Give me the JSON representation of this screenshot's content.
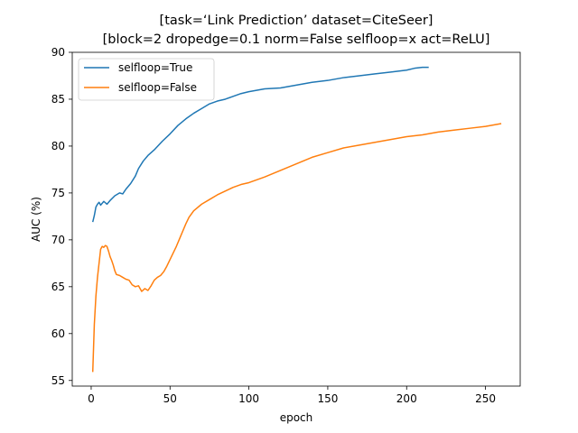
{
  "chart_data": {
    "type": "line",
    "title_line1": "[task=‘Link Prediction’ dataset=CiteSeer]",
    "title_line2": "[block=2 dropedge=0.1 norm=False selfloop=x act=ReLU]",
    "xlabel": "epoch",
    "ylabel": "AUC (%)",
    "xlim": [
      -12,
      272
    ],
    "ylim": [
      54.4,
      90
    ],
    "xticks": [
      0,
      50,
      100,
      150,
      200,
      250
    ],
    "yticks": [
      55,
      60,
      65,
      70,
      75,
      80,
      85,
      90
    ],
    "grid": false,
    "legend_placement": "top-left",
    "series": [
      {
        "name": "selfloop=True",
        "color": "#1f77b4",
        "x": [
          1,
          2,
          3,
          4,
          5,
          6,
          8,
          10,
          12,
          15,
          18,
          20,
          22,
          25,
          28,
          30,
          33,
          36,
          40,
          45,
          50,
          55,
          60,
          65,
          70,
          75,
          80,
          85,
          90,
          95,
          100,
          110,
          120,
          130,
          140,
          150,
          160,
          170,
          180,
          190,
          200,
          205,
          210,
          214
        ],
        "values": [
          71.9,
          72.6,
          73.5,
          73.8,
          74.0,
          73.7,
          74.1,
          73.8,
          74.2,
          74.7,
          75.0,
          74.9,
          75.4,
          76.0,
          76.8,
          77.6,
          78.4,
          79.0,
          79.6,
          80.5,
          81.3,
          82.2,
          82.9,
          83.5,
          84.0,
          84.5,
          84.8,
          85.0,
          85.3,
          85.6,
          85.8,
          86.1,
          86.2,
          86.5,
          86.8,
          87.0,
          87.3,
          87.5,
          87.7,
          87.9,
          88.1,
          88.3,
          88.4,
          88.4
        ]
      },
      {
        "name": "selfloop=False",
        "color": "#ff7f0e",
        "x": [
          1,
          2,
          3,
          4,
          5,
          6,
          7,
          8,
          9,
          10,
          11,
          12,
          13,
          14,
          15,
          16,
          18,
          20,
          22,
          24,
          26,
          28,
          30,
          32,
          34,
          36,
          38,
          40,
          42,
          44,
          46,
          48,
          50,
          52,
          54,
          56,
          58,
          60,
          62,
          65,
          70,
          75,
          80,
          85,
          90,
          95,
          100,
          110,
          120,
          130,
          140,
          150,
          160,
          170,
          180,
          190,
          200,
          210,
          220,
          230,
          240,
          250,
          260
        ],
        "values": [
          55.9,
          61.0,
          64.0,
          66.0,
          67.5,
          69.0,
          69.3,
          69.2,
          69.4,
          69.3,
          68.8,
          68.2,
          67.8,
          67.3,
          66.7,
          66.3,
          66.2,
          66.0,
          65.8,
          65.7,
          65.2,
          65.0,
          65.1,
          64.5,
          64.8,
          64.6,
          65.1,
          65.7,
          66.0,
          66.2,
          66.6,
          67.2,
          67.9,
          68.6,
          69.3,
          70.1,
          70.9,
          71.7,
          72.4,
          73.1,
          73.8,
          74.3,
          74.8,
          75.2,
          75.6,
          75.9,
          76.1,
          76.7,
          77.4,
          78.1,
          78.8,
          79.3,
          79.8,
          80.1,
          80.4,
          80.7,
          81.0,
          81.2,
          81.5,
          81.7,
          81.9,
          82.1,
          82.4
        ]
      }
    ]
  }
}
